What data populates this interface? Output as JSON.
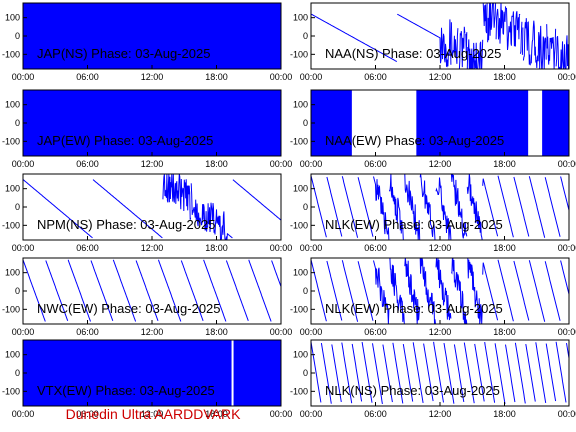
{
  "footer": "Dunedin Ultra AARDDVARK",
  "colors": {
    "trace": "#0000ff",
    "axis": "#000000",
    "footer": "#cc0000"
  },
  "chart_data": [
    {
      "type": "line",
      "title": "JAP(NS) Phase: 03-Aug-2025",
      "xticks": [
        "00:00",
        "06:00",
        "12:00",
        "18:00",
        "00:00"
      ],
      "yticks": [
        "100",
        "0",
        "-100"
      ],
      "xlim": [
        0,
        24
      ],
      "ylim": [
        -180,
        180
      ],
      "pattern": "solid"
    },
    {
      "type": "line",
      "title": "NAA(NS) Phase: 03-Aug-2025",
      "xticks": [
        "00:00",
        "06:00",
        "12:00",
        "18:00",
        "00:00"
      ],
      "yticks": [
        "100",
        "0",
        "-100"
      ],
      "xlim": [
        0,
        24
      ],
      "ylim": [
        -180,
        180
      ],
      "pattern": "drift"
    },
    {
      "type": "line",
      "title": "JAP(EW) Phase: 03-Aug-2025",
      "xticks": [
        "00:00",
        "06:00",
        "12:00",
        "18:00",
        "00:00"
      ],
      "yticks": [
        "100",
        "0",
        "-100"
      ],
      "xlim": [
        0,
        24
      ],
      "ylim": [
        -180,
        180
      ],
      "pattern": "solid"
    },
    {
      "type": "line",
      "title": "NAA(EW) Phase: 03-Aug-2025",
      "xticks": [
        "00:00",
        "06:00",
        "12:00",
        "18:00",
        "00:00"
      ],
      "yticks": [
        "100",
        "0",
        "-100"
      ],
      "xlim": [
        0,
        24
      ],
      "ylim": [
        -180,
        180
      ],
      "pattern": "mostly-solid"
    },
    {
      "type": "line",
      "title": "NPM(NS) Phase: 03-Aug-2025",
      "xticks": [
        "00:00",
        "06:00",
        "12:00",
        "18:00",
        "00:00"
      ],
      "yticks": [
        "100",
        "0",
        "-100"
      ],
      "xlim": [
        0,
        24
      ],
      "ylim": [
        -180,
        180
      ],
      "pattern": "slow-drift"
    },
    {
      "type": "line",
      "title": "NLK(EW) Phase: 03-Aug-2025",
      "xticks": [
        "00:00",
        "06:00",
        "12:00",
        "18:00",
        "00:00"
      ],
      "yticks": [
        "100",
        "0",
        "-100"
      ],
      "xlim": [
        0,
        24
      ],
      "ylim": [
        -180,
        180
      ],
      "pattern": "sawtooth-dense"
    },
    {
      "type": "line",
      "title": "NWC(EW) Phase: 03-Aug-2025",
      "xticks": [
        "00:00",
        "06:00",
        "12:00",
        "18:00",
        "00:00"
      ],
      "yticks": [
        "100",
        "0",
        "-100"
      ],
      "xlim": [
        0,
        24
      ],
      "ylim": [
        -180,
        180
      ],
      "pattern": "sawtooth"
    },
    {
      "type": "line",
      "title": "NLK(EW) Phase: 03-Aug-2025",
      "xticks": [
        "00:00",
        "06:00",
        "12:00",
        "18:00",
        "00:00"
      ],
      "yticks": [
        "100",
        "0",
        "-100"
      ],
      "xlim": [
        0,
        24
      ],
      "ylim": [
        -180,
        180
      ],
      "pattern": "sawtooth-dense"
    },
    {
      "type": "line",
      "title": "VTX(EW) Phase: 03-Aug-2025",
      "xticks": [
        "00:00",
        "06:00",
        "12:00",
        "18:00",
        "00:00"
      ],
      "yticks": [
        "100",
        "0",
        "-100"
      ],
      "xlim": [
        0,
        24
      ],
      "ylim": [
        -180,
        180
      ],
      "pattern": "solid"
    },
    {
      "type": "line",
      "title": "NLK(NS) Phase: 03-Aug-2025",
      "xticks": [
        "00:00",
        "06:00",
        "12:00",
        "18:00",
        "00:00"
      ],
      "yticks": [
        "100",
        "0",
        "-100"
      ],
      "xlim": [
        0,
        24
      ],
      "ylim": [
        -180,
        180
      ],
      "pattern": "sawtooth-fine"
    }
  ]
}
